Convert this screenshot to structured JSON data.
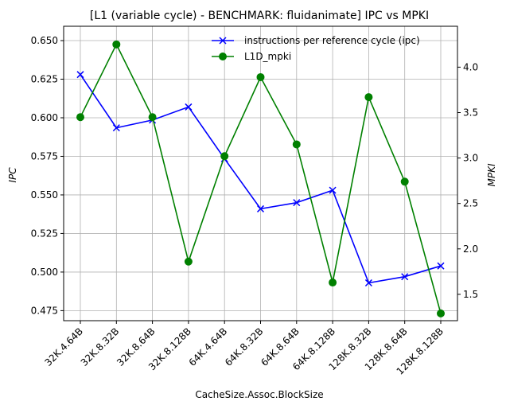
{
  "chart_data": {
    "type": "line",
    "title": "[L1 (variable cycle) - BENCHMARK: fluidanimate]  IPC vs MPKI",
    "xlabel": "CacheSize.Assoc.BlockSize",
    "ylabel_left": "IPC",
    "ylabel_right": "MPKI",
    "categories": [
      "32K.4.64B",
      "32K.8.32B",
      "32K.8.64B",
      "32K.8.128B",
      "64K.4.64B",
      "64K.8.32B",
      "64K.8.64B",
      "64K.8.128B",
      "128K.8.32B",
      "128K.8.64B",
      "128K.8.128B"
    ],
    "ylim_left": [
      0.4685,
      0.6593
    ],
    "ylim_right": [
      1.21,
      4.45
    ],
    "yticks_left": [
      "0.475",
      "0.500",
      "0.525",
      "0.550",
      "0.575",
      "0.600",
      "0.625",
      "0.650"
    ],
    "yticks_right": [
      "1.5",
      "2.0",
      "2.5",
      "3.0",
      "3.5",
      "4.0"
    ],
    "grid": true,
    "legend_position": "top-right",
    "series": [
      {
        "name": "instructions per reference cycle (ipc)",
        "axis": "left",
        "color": "#0000ff",
        "marker": "x",
        "values": [
          0.628,
          0.5935,
          0.5985,
          0.607,
          0.5735,
          0.541,
          0.545,
          0.553,
          0.493,
          0.497,
          0.504
        ]
      },
      {
        "name": "L1D_mpki",
        "axis": "right",
        "color": "#008000",
        "marker": "circle",
        "values": [
          3.45,
          4.25,
          3.45,
          1.86,
          3.02,
          3.89,
          3.15,
          1.63,
          3.67,
          2.74,
          1.29
        ]
      }
    ]
  }
}
